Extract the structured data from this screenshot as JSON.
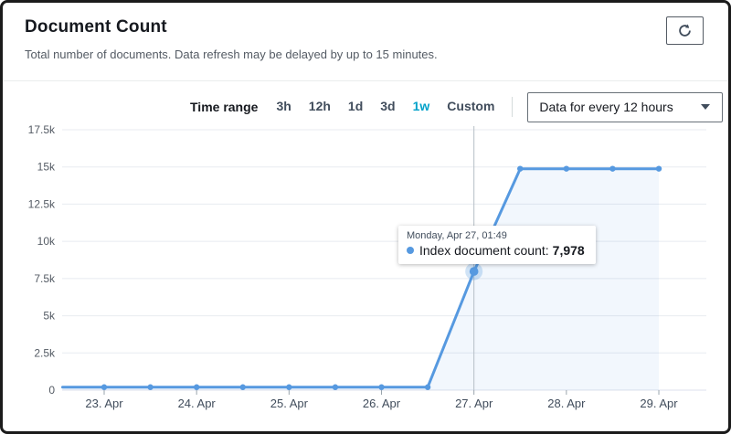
{
  "header": {
    "title": "Document Count",
    "subtitle": "Total number of documents. Data refresh may be delayed by up to 15 minutes."
  },
  "toolbar": {
    "refresh_icon": "refresh-circular-arrow"
  },
  "controls": {
    "time_range_label": "Time range",
    "options": [
      {
        "label": "3h",
        "selected": false
      },
      {
        "label": "12h",
        "selected": false
      },
      {
        "label": "1d",
        "selected": false
      },
      {
        "label": "3d",
        "selected": false
      },
      {
        "label": "1w",
        "selected": true
      },
      {
        "label": "Custom",
        "selected": false
      }
    ],
    "interval_select": {
      "value": "Data for every 12 hours",
      "caret_icon": "chevron-down-filled"
    }
  },
  "colors": {
    "accent_selected": "#00a1c9",
    "line": "#5699e0",
    "area_fill": "#5699e0",
    "area_fill_opacity": 0.08,
    "grid": "#e8ebf0",
    "baseline": "#dde1ec",
    "axis_text": "#545b64",
    "x_label_text": "#414d5c",
    "crosshair": "#b6bec6",
    "halo_opacity": 0.28
  },
  "chart_data": {
    "type": "area",
    "title": "Document Count",
    "xlabel": "",
    "ylabel": "",
    "ylim": [
      0,
      17500
    ],
    "grid": true,
    "x_ticks": [
      "23. Apr",
      "24. Apr",
      "25. Apr",
      "26. Apr",
      "27. Apr",
      "28. Apr",
      "29. Apr"
    ],
    "y_ticks": [
      {
        "label": "17.5k",
        "value": 17500
      },
      {
        "label": "15k",
        "value": 15000
      },
      {
        "label": "12.5k",
        "value": 12500
      },
      {
        "label": "10k",
        "value": 10000
      },
      {
        "label": "7.5k",
        "value": 7500
      },
      {
        "label": "5k",
        "value": 5000
      },
      {
        "label": "2.5k",
        "value": 2500
      },
      {
        "label": "0",
        "value": 0
      }
    ],
    "series": [
      {
        "name": "Index document count",
        "interval": "12 hours",
        "points": [
          {
            "day": -0.45,
            "value": 200,
            "dot": false
          },
          {
            "day": 0,
            "value": 200
          },
          {
            "day": 0.5,
            "value": 200
          },
          {
            "day": 1,
            "value": 200
          },
          {
            "day": 1.5,
            "value": 200
          },
          {
            "day": 2,
            "value": 200
          },
          {
            "day": 2.5,
            "value": 200
          },
          {
            "day": 3,
            "value": 200
          },
          {
            "day": 3.5,
            "value": 200
          },
          {
            "day": 4,
            "value": 7978,
            "hover": true
          },
          {
            "day": 4.5,
            "value": 14880
          },
          {
            "day": 5,
            "value": 14880
          },
          {
            "day": 5.5,
            "value": 14880
          },
          {
            "day": 6,
            "value": 14880
          }
        ]
      }
    ],
    "tooltip": {
      "timestamp": "Monday, Apr 27, 01:49",
      "series_label": "Index document count:",
      "value": "7,978"
    }
  }
}
